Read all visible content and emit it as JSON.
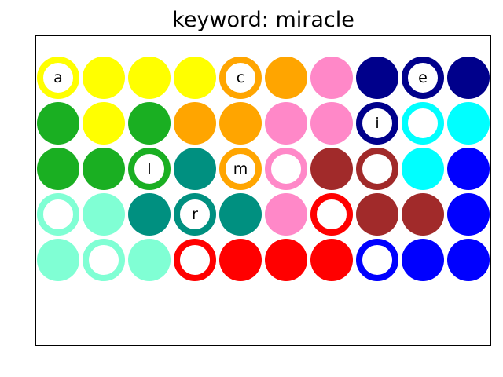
{
  "title": "keyword: miracle",
  "colors": {
    "yellow": "#ffff00",
    "orange": "#ffa500",
    "pink": "#ff88c8",
    "navy": "#00008b",
    "green": "#1aaf22",
    "cyan": "#00ffff",
    "teal": "#009080",
    "brown": "#a12a2a",
    "blue": "#0000ff",
    "aqua": "#80ffd4",
    "red": "#ff0000"
  },
  "grid": {
    "rows": [
      [
        {
          "color": "yellow",
          "style": "ring",
          "letter": "a"
        },
        {
          "color": "yellow",
          "style": "filled"
        },
        {
          "color": "yellow",
          "style": "filled"
        },
        {
          "color": "yellow",
          "style": "filled"
        },
        {
          "color": "orange",
          "style": "ring",
          "letter": "c"
        },
        {
          "color": "orange",
          "style": "filled"
        },
        {
          "color": "pink",
          "style": "filled"
        },
        {
          "color": "navy",
          "style": "filled"
        },
        {
          "color": "navy",
          "style": "ring",
          "letter": "e"
        },
        {
          "color": "navy",
          "style": "filled"
        }
      ],
      [
        {
          "color": "green",
          "style": "filled"
        },
        {
          "color": "yellow",
          "style": "filled"
        },
        {
          "color": "green",
          "style": "filled"
        },
        {
          "color": "orange",
          "style": "filled"
        },
        {
          "color": "orange",
          "style": "filled"
        },
        {
          "color": "pink",
          "style": "filled"
        },
        {
          "color": "pink",
          "style": "filled"
        },
        {
          "color": "navy",
          "style": "ring",
          "letter": "i"
        },
        {
          "color": "cyan",
          "style": "ring"
        },
        {
          "color": "cyan",
          "style": "filled"
        }
      ],
      [
        {
          "color": "green",
          "style": "filled"
        },
        {
          "color": "green",
          "style": "filled"
        },
        {
          "color": "green",
          "style": "ring",
          "letter": "l"
        },
        {
          "color": "teal",
          "style": "filled"
        },
        {
          "color": "orange",
          "style": "ring",
          "letter": "m"
        },
        {
          "color": "pink",
          "style": "ring"
        },
        {
          "color": "brown",
          "style": "filled"
        },
        {
          "color": "brown",
          "style": "ring"
        },
        {
          "color": "cyan",
          "style": "filled"
        },
        {
          "color": "blue",
          "style": "filled"
        }
      ],
      [
        {
          "color": "aqua",
          "style": "ring"
        },
        {
          "color": "aqua",
          "style": "filled"
        },
        {
          "color": "teal",
          "style": "filled"
        },
        {
          "color": "teal",
          "style": "ring",
          "letter": "r"
        },
        {
          "color": "teal",
          "style": "filled"
        },
        {
          "color": "pink",
          "style": "filled"
        },
        {
          "color": "red",
          "style": "ring"
        },
        {
          "color": "brown",
          "style": "filled"
        },
        {
          "color": "brown",
          "style": "filled"
        },
        {
          "color": "blue",
          "style": "filled"
        }
      ],
      [
        {
          "color": "aqua",
          "style": "filled"
        },
        {
          "color": "aqua",
          "style": "ring"
        },
        {
          "color": "aqua",
          "style": "filled"
        },
        {
          "color": "red",
          "style": "ring"
        },
        {
          "color": "red",
          "style": "filled"
        },
        {
          "color": "red",
          "style": "filled"
        },
        {
          "color": "red",
          "style": "filled"
        },
        {
          "color": "blue",
          "style": "ring"
        },
        {
          "color": "blue",
          "style": "filled"
        },
        {
          "color": "blue",
          "style": "filled"
        }
      ]
    ]
  }
}
